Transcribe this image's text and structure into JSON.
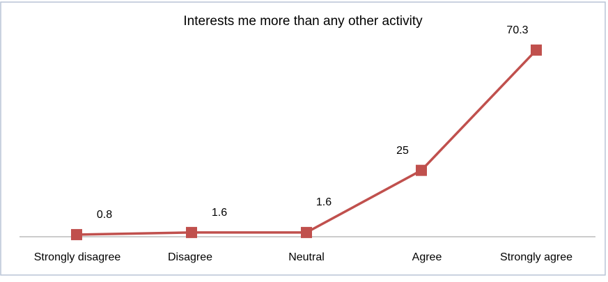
{
  "chart_data": {
    "type": "line",
    "title": "Interests me more than any other activity",
    "categories": [
      "Strongly disagree",
      "Disagree",
      "Neutral",
      "Agree",
      "Strongly agree"
    ],
    "values": [
      0.8,
      1.6,
      1.6,
      25,
      70.3
    ],
    "color": "#c0504d",
    "ylim": [
      0,
      75
    ]
  }
}
